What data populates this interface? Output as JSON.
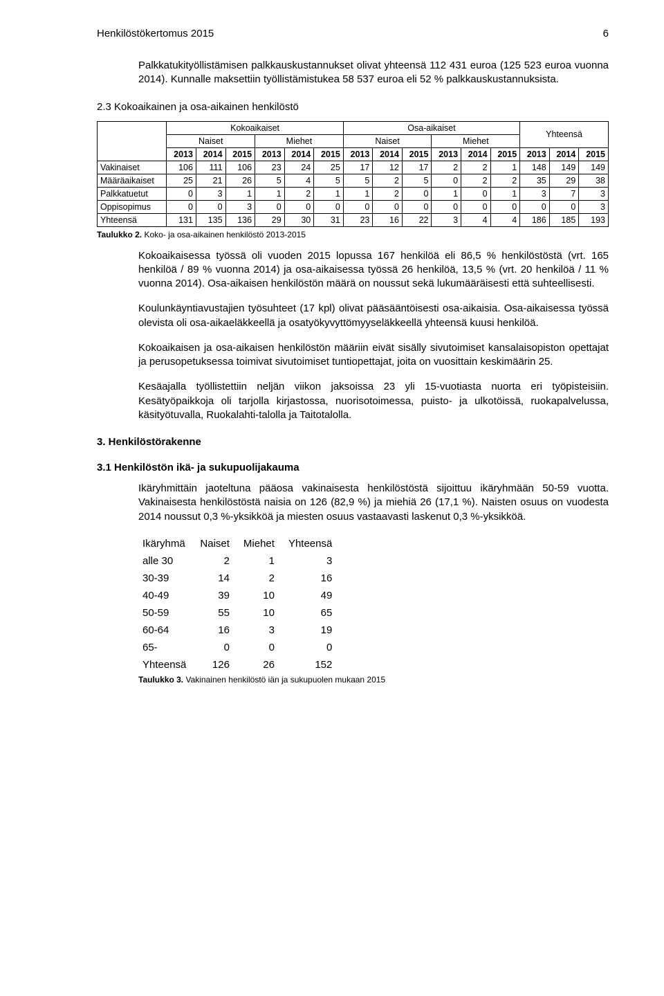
{
  "header": {
    "title": "Henkilöstökertomus 2015",
    "page": "6"
  },
  "p1": "Palkkatukityöllistämisen palkkauskustannukset olivat yhteensä 112 431 euroa (125 523 euroa vuonna 2014). Kunnalle maksettiin työllistämistukea 58 537 euroa eli 52 % palkkauskustannuksista.",
  "h23": "2.3 Kokoaikainen ja osa-aikainen henkilöstö",
  "table1": {
    "group_headers": [
      "Kokoaikaiset",
      "Osa-aikaiset",
      "Yhteensä"
    ],
    "sub_headers": [
      "Naiset",
      "Miehet",
      "Naiset",
      "Miehet"
    ],
    "year_cols": [
      "2013",
      "2014",
      "2015",
      "2013",
      "2014",
      "2015",
      "2013",
      "2014",
      "2015",
      "2013",
      "2014",
      "2015",
      "2013",
      "2014",
      "2015"
    ],
    "rows": [
      {
        "label": "Vakinaiset",
        "v": [
          "106",
          "111",
          "106",
          "23",
          "24",
          "25",
          "17",
          "12",
          "17",
          "2",
          "2",
          "1",
          "148",
          "149",
          "149"
        ]
      },
      {
        "label": "Määräaikaiset",
        "v": [
          "25",
          "21",
          "26",
          "5",
          "4",
          "5",
          "5",
          "2",
          "5",
          "0",
          "2",
          "2",
          "35",
          "29",
          "38"
        ]
      },
      {
        "label": "Palkkatuetut",
        "v": [
          "0",
          "3",
          "1",
          "1",
          "2",
          "1",
          "1",
          "2",
          "0",
          "1",
          "0",
          "1",
          "3",
          "7",
          "3"
        ]
      },
      {
        "label": "Oppisopimus",
        "v": [
          "0",
          "0",
          "3",
          "0",
          "0",
          "0",
          "0",
          "0",
          "0",
          "0",
          "0",
          "0",
          "0",
          "0",
          "3"
        ]
      },
      {
        "label": "Yhteensä",
        "v": [
          "131",
          "135",
          "136",
          "29",
          "30",
          "31",
          "23",
          "16",
          "22",
          "3",
          "4",
          "4",
          "186",
          "185",
          "193"
        ]
      }
    ],
    "caption": "Taulukko 2. Koko- ja osa-aikainen henkilöstö 2013-2015",
    "caption_bold": "Taulukko 2.",
    "caption_rest": " Koko- ja osa-aikainen henkilöstö 2013-2015"
  },
  "p2": "Kokoaikaisessa työssä oli vuoden 2015 lopussa 167 henkilöä eli 86,5 % henkilöstöstä (vrt. 165 henkilöä / 89 % vuonna 2014) ja osa-aikaisessa työssä 26 henkilöä, 13,5 % (vrt. 20 henkilöä / 11 % vuonna 2014). Osa-aikaisen henkilöstön määrä on noussut sekä lukumääräisesti että suhteellisesti.",
  "p3": "Koulunkäyntiavustajien työsuhteet (17 kpl) olivat pääsääntöisesti osa-aikaisia. Osa-aikaisessa työssä olevista oli osa-aikaeläkkeellä ja osatyökyvyttömyyseläkkeellä yhteensä kuusi henkilöä.",
  "p4": "Kokoaikaisen ja osa-aikaisen henkilöstön määriin eivät sisälly sivutoimiset kansalaisopiston opettajat ja perusopetuksessa toimivat sivutoimiset tuntiopettajat, joita on vuosittain keskimäärin 25.",
  "p5": "Kesäajalla työllistettiin neljän viikon jaksoissa 23 yli 15-vuotiasta nuorta eri työpisteisiin. Kesätyöpaikkoja oli tarjolla kirjastossa, nuorisotoimessa, puisto- ja ulkotöissä, ruokapalvelussa, käsityötuvalla, Ruokalahti-talolla ja Taitotalolla.",
  "h3": "3. Henkilöstörakenne",
  "h31": "3.1 Henkilöstön ikä- ja sukupuolijakauma",
  "p6": "Ikäryhmittäin jaoteltuna pääosa vakinaisesta henkilöstöstä sijoittuu ikäryhmään 50-59 vuotta. Vakinaisesta henkilöstöstä naisia on 126 (82,9 %) ja miehiä 26 (17,1 %). Naisten osuus on vuodesta 2014 noussut 0,3 %-yksikköä ja miesten osuus vastaavasti laskenut 0,3 %-yksikköä.",
  "table2": {
    "headers": [
      "Ikäryhmä",
      "Naiset",
      "Miehet",
      "Yhteensä"
    ],
    "rows": [
      {
        "label": "alle 30",
        "v": [
          "2",
          "1",
          "3"
        ]
      },
      {
        "label": "30-39",
        "v": [
          "14",
          "2",
          "16"
        ]
      },
      {
        "label": "40-49",
        "v": [
          "39",
          "10",
          "49"
        ]
      },
      {
        "label": "50-59",
        "v": [
          "55",
          "10",
          "65"
        ]
      },
      {
        "label": "60-64",
        "v": [
          "16",
          "3",
          "19"
        ]
      },
      {
        "label": "65-",
        "v": [
          "0",
          "0",
          "0"
        ]
      },
      {
        "label": "Yhteensä",
        "v": [
          "126",
          "26",
          "152"
        ]
      }
    ],
    "caption_bold": "Taulukko 3.",
    "caption_rest": " Vakinainen henkilöstö iän ja sukupuolen mukaan 2015"
  }
}
